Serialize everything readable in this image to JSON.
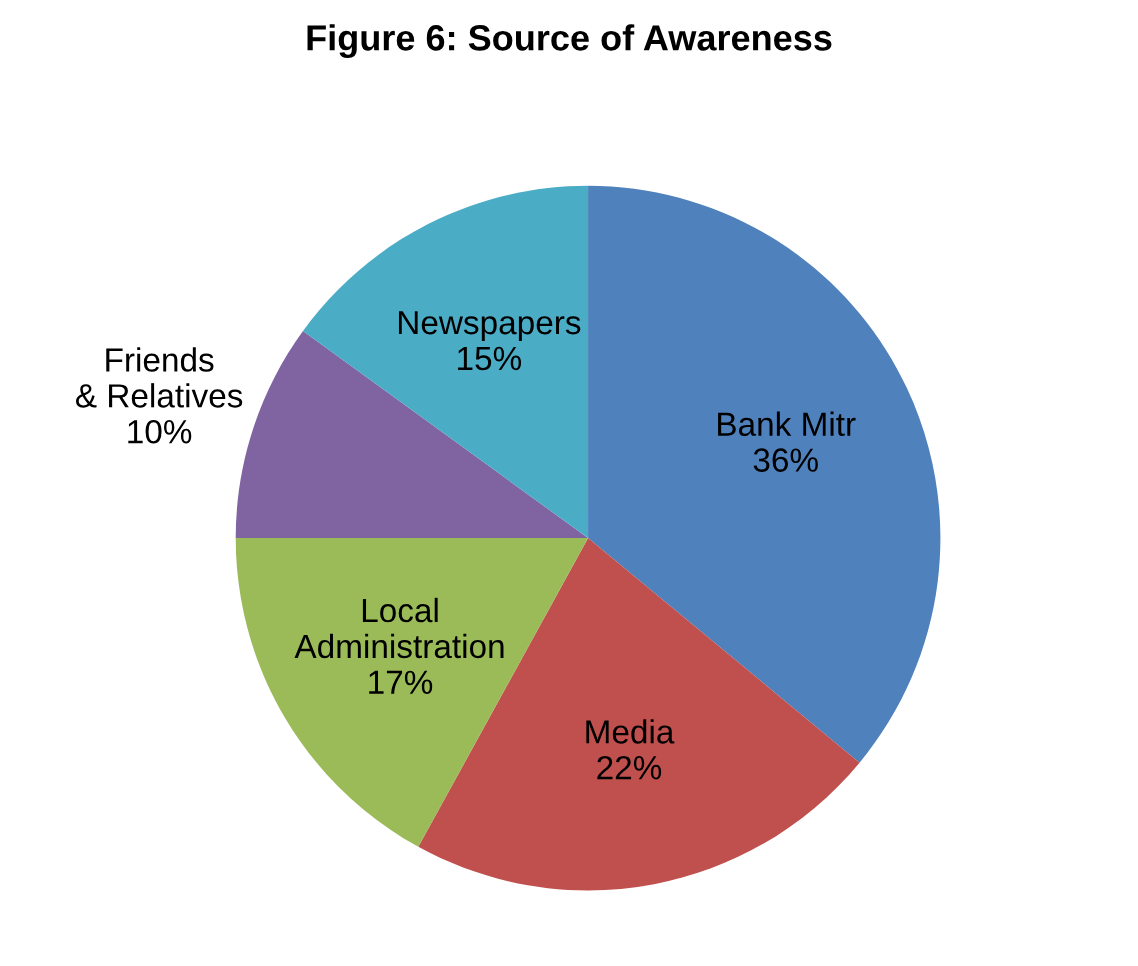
{
  "chart_data": {
    "type": "pie",
    "title": "Figure 6: Source of Awareness",
    "categories": [
      "Bank Mitr",
      "Media",
      "Local Administration",
      "Friends & Relatives",
      "Newspapers"
    ],
    "values": [
      36,
      22,
      17,
      10,
      15
    ],
    "colors": [
      "#4f81bd",
      "#c0504d",
      "#9bbb59",
      "#8064a2",
      "#4bacc6"
    ],
    "value_labels": [
      "36%",
      "22%",
      "17%",
      "10%",
      "15%"
    ],
    "legend": false
  }
}
